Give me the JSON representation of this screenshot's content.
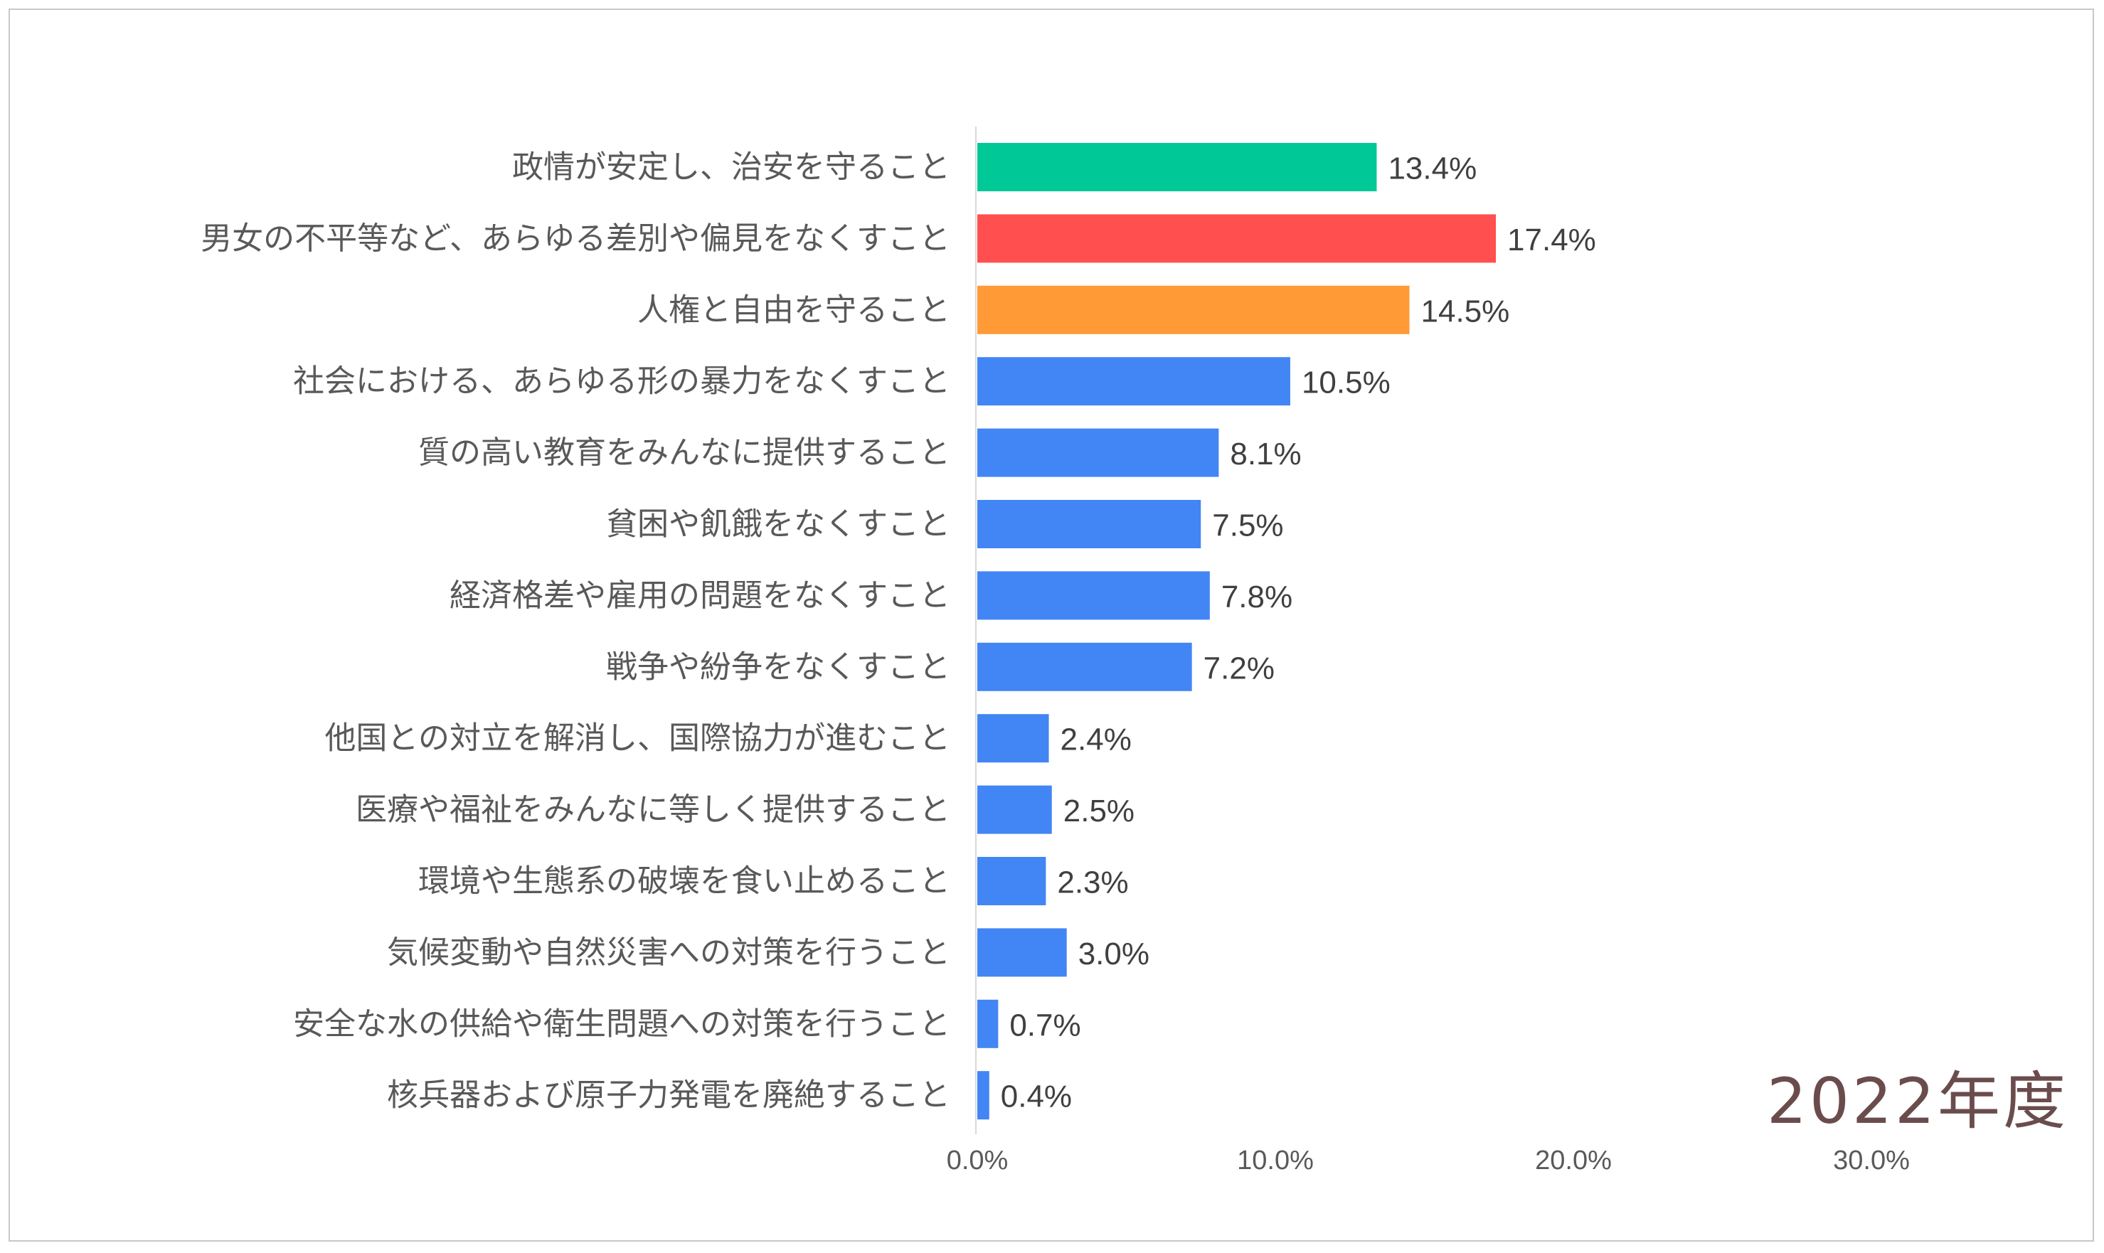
{
  "chart_data": {
    "type": "bar",
    "orientation": "horizontal",
    "categories": [
      "政情が安定し、治安を守ること",
      "男女の不平等など、あらゆる差別や偏見をなくすこと",
      "人権と自由を守ること",
      "社会における、あらゆる形の暴力をなくすこと",
      "質の高い教育をみんなに提供すること",
      "貧困や飢餓をなくすこと",
      "経済格差や雇用の問題をなくすこと",
      "戦争や紛争をなくすこと",
      "他国との対立を解消し、国際協力が進むこと",
      "医療や福祉をみんなに等しく提供すること",
      "環境や生態系の破壊を食い止めること",
      "気候変動や自然災害への対策を行うこと",
      "安全な水の供給や衛生問題への対策を行うこと",
      "核兵器および原子力発電を廃絶すること"
    ],
    "values": [
      13.4,
      17.4,
      14.5,
      10.5,
      8.1,
      7.5,
      7.8,
      7.2,
      2.4,
      2.5,
      2.3,
      3.0,
      0.7,
      0.4
    ],
    "value_labels": [
      "13.4%",
      "17.4%",
      "14.5%",
      "10.5%",
      "8.1%",
      "7.5%",
      "7.8%",
      "7.2%",
      "2.4%",
      "2.5%",
      "2.3%",
      "3.0%",
      "0.7%",
      "0.4%"
    ],
    "bar_colors": [
      "#00c896",
      "#ff4f4f",
      "#ff9a36",
      "#4285f4",
      "#4285f4",
      "#4285f4",
      "#4285f4",
      "#4285f4",
      "#4285f4",
      "#4285f4",
      "#4285f4",
      "#4285f4",
      "#4285f4",
      "#4285f4"
    ],
    "x_ticks": [
      0,
      10,
      20,
      30
    ],
    "x_tick_labels": [
      "0.0%",
      "10.0%",
      "20.0%",
      "30.0%"
    ],
    "xlim": [
      0,
      35
    ],
    "grid": false,
    "legend": "none",
    "annotation": "2022年度"
  }
}
